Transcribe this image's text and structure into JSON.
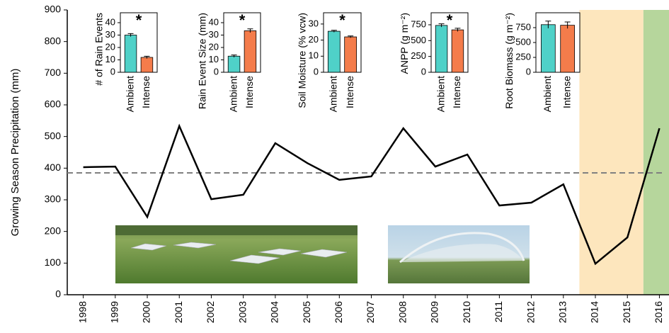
{
  "chart_data": [
    {
      "type": "line",
      "ylabel": "Growing Season Precipitation (mm)",
      "x": [
        1998,
        1999,
        2000,
        2001,
        2002,
        2003,
        2004,
        2005,
        2006,
        2007,
        2008,
        2009,
        2010,
        2011,
        2012,
        2013,
        2014,
        2015,
        2016
      ],
      "values": [
        403,
        405,
        246,
        533,
        302,
        316,
        479,
        416,
        363,
        374,
        526,
        405,
        443,
        282,
        291,
        349,
        98,
        181,
        526
      ],
      "color": "#000000",
      "xlim": [
        1997.5,
        2016.3
      ],
      "xticks": [
        1998,
        1999,
        2000,
        2001,
        2002,
        2003,
        2004,
        2005,
        2006,
        2007,
        2008,
        2009,
        2010,
        2011,
        2012,
        2013,
        2014,
        2015,
        2016
      ],
      "ylim": [
        0,
        900
      ],
      "yticks": [
        0,
        100,
        200,
        300,
        400,
        500,
        600,
        700,
        800,
        900
      ],
      "reference_line": {
        "value": 385,
        "color": "#808080",
        "style": "dashed"
      },
      "shaded_regions": [
        {
          "from": 2013.5,
          "to": 2015.5,
          "color": "#fde6bd"
        },
        {
          "from": 2015.5,
          "to": 2016.3,
          "color": "#b6d69c"
        }
      ]
    },
    {
      "type": "bar",
      "ylabel": "# of Rain Events",
      "categories": [
        "Ambient",
        "Intense"
      ],
      "values": [
        30,
        12
      ],
      "errors": [
        1.2,
        0.9
      ],
      "colors": [
        "#4fd1c8",
        "#f47c4b"
      ],
      "ylim": [
        0,
        48
      ],
      "yticks": [
        0,
        10,
        20,
        30,
        40
      ],
      "annotation": "*"
    },
    {
      "type": "bar",
      "ylabel": "Rain Event Size (mm)",
      "categories": [
        "Ambient",
        "Intense"
      ],
      "values": [
        13,
        33.5
      ],
      "errors": [
        0.9,
        1.5
      ],
      "colors": [
        "#4fd1c8",
        "#f47c4b"
      ],
      "ylim": [
        0,
        48
      ],
      "yticks": [
        0,
        10,
        20,
        30,
        40
      ],
      "annotation": "*"
    },
    {
      "type": "bar",
      "ylabel": "Soil Moisture (% vcw)",
      "categories": [
        "Ambient",
        "Intense"
      ],
      "values": [
        25.5,
        22
      ],
      "errors": [
        0.6,
        0.6
      ],
      "colors": [
        "#4fd1c8",
        "#f47c4b"
      ],
      "ylim": [
        0,
        37
      ],
      "yticks": [
        0,
        10,
        20,
        30
      ],
      "annotation": "*"
    },
    {
      "type": "bar",
      "ylabel": "ANPP (g m⁻²)",
      "categories": [
        "Ambient",
        "Intense"
      ],
      "values": [
        740,
        670
      ],
      "errors": [
        25,
        25
      ],
      "colors": [
        "#4fd1c8",
        "#f47c4b"
      ],
      "ylim": [
        0,
        940
      ],
      "yticks": [
        0,
        250,
        500,
        750
      ],
      "annotation": "*"
    },
    {
      "type": "bar",
      "ylabel": "Root Biomass (g m⁻²)",
      "categories": [
        "Ambient",
        "Intense"
      ],
      "values": [
        800,
        790
      ],
      "errors": [
        60,
        55
      ],
      "colors": [
        "#4fd1c8",
        "#f47c4b"
      ],
      "ylim": [
        0,
        1000
      ],
      "yticks": [
        0,
        250,
        500,
        750
      ]
    }
  ]
}
